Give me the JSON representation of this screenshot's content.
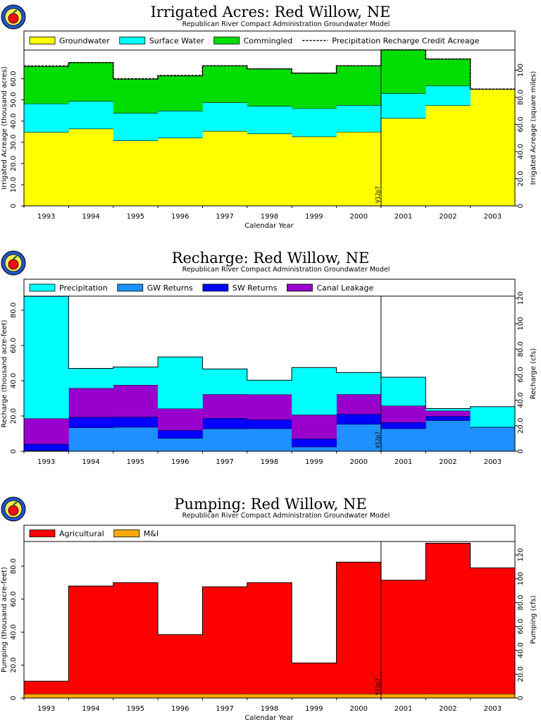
{
  "colors": {
    "groundwater": "#ffff00",
    "surface_water": "#00ffff",
    "commingled": "#00dd00",
    "precipitation": "#00ffff",
    "gw_returns": "#1e90ff",
    "sw_returns": "#0000ff",
    "canal_leakage": "#9900cc",
    "agricultural": "#ff0000",
    "mi": "#ffaa00"
  },
  "chart_data": [
    {
      "type": "area",
      "title": "Irrigated Acres: Red Willow, NE",
      "subtitle": "Republican River Compact Administration Groundwater Model",
      "xlabel": "Calendar Year",
      "ylabel": "Irrigated Acreage (thousand acres)",
      "ylabel_right": "Irrigated Acreage (square miles)",
      "categories": [
        "1993",
        "1994",
        "1995",
        "1996",
        "1997",
        "1998",
        "1999",
        "2000",
        "2001",
        "2002",
        "2003"
      ],
      "ylim": [
        0,
        73.5
      ],
      "yticks": [
        0,
        10,
        20,
        30,
        40,
        50,
        60
      ],
      "ytick_labels": [
        "0",
        "10.0",
        "20.0",
        "30.0",
        "40.0",
        "50.0",
        "60.0"
      ],
      "y2lim": [
        0,
        114.8
      ],
      "y2ticks": [
        0,
        20,
        40,
        60,
        80,
        100
      ],
      "y2tick_labels": [
        "0",
        "20.0",
        "40.0",
        "60.0",
        "80.0",
        "100"
      ],
      "marker": {
        "label": "V12p7",
        "after_index": 7
      },
      "legend": "top",
      "series": [
        {
          "name": "Groundwater",
          "color_key": "groundwater",
          "values": [
            34.7,
            36.3,
            30.7,
            32.0,
            35.2,
            34.0,
            32.6,
            34.8,
            41.3,
            47.3,
            55.0
          ]
        },
        {
          "name": "Surface Water",
          "color_key": "surface_water",
          "values": [
            13.4,
            13.0,
            13.0,
            12.8,
            13.5,
            13.0,
            13.3,
            12.6,
            11.7,
            9.3,
            0.0
          ]
        },
        {
          "name": "Commingled",
          "color_key": "commingled",
          "values": [
            17.7,
            18.3,
            16.1,
            16.5,
            17.3,
            17.7,
            16.8,
            18.6,
            20.6,
            12.6,
            0.0
          ]
        }
      ],
      "line_series": {
        "name": "Precipitation Recharge Credit Acreage",
        "values": [
          66.0,
          67.6,
          60.0,
          61.5,
          66.1,
          64.6,
          62.6,
          66.1,
          73.6,
          69.3,
          55.1
        ]
      }
    },
    {
      "type": "area",
      "title": "Recharge: Red Willow, NE",
      "subtitle": "Republican River Compact Administration Groundwater Model",
      "xlabel": "",
      "ylabel": "Recharge (thousand acre-feet)",
      "ylabel_right": "Recharge (cfs)",
      "categories": [
        "1993",
        "1994",
        "1995",
        "1996",
        "1997",
        "1998",
        "1999",
        "2000",
        "2001",
        "2002",
        "2003"
      ],
      "ylim": [
        0,
        88
      ],
      "yticks": [
        0,
        20,
        40,
        60,
        80
      ],
      "ytick_labels": [
        "0",
        "20.0",
        "40.0",
        "60.0",
        "80.0"
      ],
      "y2lim": [
        0,
        121.6
      ],
      "y2ticks": [
        0,
        20,
        40,
        60,
        80,
        100,
        120
      ],
      "y2tick_labels": [
        "0",
        "20.0",
        "40.0",
        "60.0",
        "80.0",
        "100",
        "120"
      ],
      "marker": {
        "label": "V12p7",
        "after_index": 7
      },
      "legend": "top",
      "series": [
        {
          "name": "GW Returns",
          "color_key": "gw_returns",
          "values": [
            0.3,
            13.3,
            13.6,
            7.3,
            12.7,
            12.8,
            2.4,
            15.3,
            12.8,
            17.4,
            13.6
          ]
        },
        {
          "name": "SW Returns",
          "color_key": "sw_returns",
          "values": [
            3.7,
            6.0,
            5.8,
            4.5,
            6.0,
            5.0,
            4.6,
            5.7,
            3.5,
            2.4,
            0.0
          ]
        },
        {
          "name": "Canal Leakage",
          "color_key": "canal_leakage",
          "values": [
            14.5,
            16.4,
            18.1,
            12.3,
            13.5,
            14.3,
            13.6,
            11.2,
            9.4,
            3.1,
            0.0
          ]
        },
        {
          "name": "Precipitation",
          "color_key": "precipitation",
          "values": [
            69.4,
            11.3,
            10.3,
            29.4,
            14.5,
            8.2,
            26.9,
            12.5,
            16.3,
            1.3,
            11.7
          ]
        }
      ]
    },
    {
      "type": "area",
      "title": "Pumping: Red Willow, NE",
      "subtitle": "Republican River Compact Administration Groundwater Model",
      "xlabel": "Calendar Year",
      "ylabel": "Pumping (thousand acre-feet)",
      "ylabel_right": "Pumping (cfs)",
      "categories": [
        "1993",
        "1994",
        "1995",
        "1996",
        "1997",
        "1998",
        "1999",
        "2000",
        "2001",
        "2002",
        "2003"
      ],
      "ylim": [
        0,
        95
      ],
      "yticks": [
        0,
        20,
        40,
        60,
        80
      ],
      "ytick_labels": [
        "0",
        "20.0",
        "40.0",
        "60.0",
        "80.0"
      ],
      "y2lim": [
        0,
        131.2
      ],
      "y2ticks": [
        0,
        20,
        40,
        60,
        80,
        100,
        120
      ],
      "y2tick_labels": [
        "0",
        "20.0",
        "40.0",
        "60.0",
        "80.0",
        "100",
        "120"
      ],
      "marker": {
        "label": "V12p7",
        "after_index": 7
      },
      "legend": "top",
      "series": [
        {
          "name": "M&I",
          "color_key": "mi",
          "values": [
            2.5,
            2.5,
            2.5,
            2.5,
            2.5,
            2.5,
            2.5,
            2.5,
            2.5,
            2.5,
            2.5
          ]
        },
        {
          "name": "Agricultural",
          "color_key": "agricultural",
          "values": [
            7.7,
            65.5,
            67.5,
            36.0,
            65.0,
            67.5,
            18.8,
            80.0,
            69.0,
            91.5,
            76.5
          ]
        }
      ]
    }
  ],
  "legends": [
    [
      {
        "label": "Groundwater",
        "kind": "box",
        "color_key": "groundwater"
      },
      {
        "label": "Surface Water",
        "kind": "box",
        "color_key": "surface_water"
      },
      {
        "label": "Commingled",
        "kind": "box",
        "color_key": "commingled"
      },
      {
        "label": "Precipitation Recharge Credit Acreage",
        "kind": "dash"
      }
    ],
    [
      {
        "label": "Precipitation",
        "kind": "box",
        "color_key": "precipitation"
      },
      {
        "label": "GW Returns",
        "kind": "box",
        "color_key": "gw_returns"
      },
      {
        "label": "SW Returns",
        "kind": "box",
        "color_key": "sw_returns"
      },
      {
        "label": "Canal Leakage",
        "kind": "box",
        "color_key": "canal_leakage"
      }
    ],
    [
      {
        "label": "Agricultural",
        "kind": "box",
        "color_key": "agricultural"
      },
      {
        "label": "M&I",
        "kind": "box",
        "color_key": "mi"
      }
    ]
  ]
}
